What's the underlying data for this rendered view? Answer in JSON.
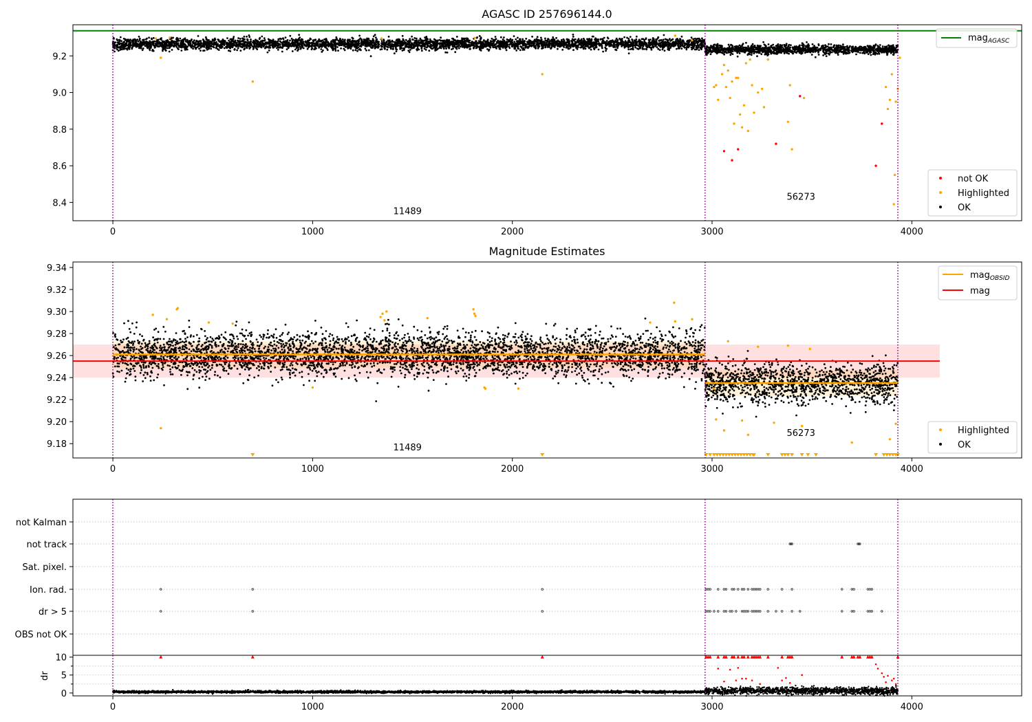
{
  "chart_data": [
    {
      "id": "top",
      "type": "scatter",
      "title": "AGASC ID 257696144.0",
      "xlim": [
        -200,
        4550
      ],
      "ylim": [
        8.3,
        9.37
      ],
      "xticks": [
        0,
        1000,
        2000,
        3000,
        4000
      ],
      "yticks": [
        8.4,
        8.6,
        8.8,
        9.0,
        9.2
      ],
      "vlines": [
        0,
        2965,
        3930
      ],
      "hline": {
        "label": "mag",
        "sub": "AGASC",
        "y": 9.337,
        "x": [
          -200,
          4550
        ],
        "color": "#008000"
      },
      "annotations": [
        {
          "text": "11489",
          "x": 1475,
          "y": 8.335
        },
        {
          "text": "56273",
          "x": 3445,
          "y": 8.415
        }
      ],
      "series": [
        {
          "name": "not OK",
          "color": "#ff0000",
          "points": [
            [
              3060,
              8.68
            ],
            [
              3100,
              8.63
            ],
            [
              3130,
              8.69
            ],
            [
              3320,
              8.72
            ],
            [
              3440,
              8.98
            ],
            [
              3820,
              8.6
            ],
            [
              3850,
              8.83
            ]
          ]
        },
        {
          "name": "Highlighted",
          "color": "#ffa500",
          "points": [
            [
              240,
              9.19
            ],
            [
              700,
              9.06
            ],
            [
              2150,
              9.1
            ],
            [
              3010,
              9.03
            ],
            [
              3020,
              9.04
            ],
            [
              3030,
              8.96
            ],
            [
              3050,
              9.1
            ],
            [
              3060,
              9.15
            ],
            [
              3070,
              9.03
            ],
            [
              3080,
              9.12
            ],
            [
              3090,
              8.97
            ],
            [
              3100,
              9.06
            ],
            [
              3110,
              8.83
            ],
            [
              3120,
              9.08
            ],
            [
              3130,
              9.08
            ],
            [
              3140,
              8.88
            ],
            [
              3150,
              8.81
            ],
            [
              3160,
              8.93
            ],
            [
              3170,
              9.16
            ],
            [
              3180,
              8.79
            ],
            [
              3190,
              9.18
            ],
            [
              3200,
              9.04
            ],
            [
              3210,
              8.89
            ],
            [
              3230,
              9.0
            ],
            [
              3250,
              9.02
            ],
            [
              3260,
              8.92
            ],
            [
              3280,
              9.18
            ],
            [
              3380,
              8.84
            ],
            [
              3390,
              9.04
            ],
            [
              3400,
              8.69
            ],
            [
              3460,
              8.97
            ],
            [
              3870,
              9.03
            ],
            [
              3880,
              8.91
            ],
            [
              3890,
              8.96
            ],
            [
              3900,
              9.1
            ],
            [
              3910,
              8.39
            ],
            [
              3915,
              8.55
            ],
            [
              3920,
              8.95
            ],
            [
              3930,
              9.02
            ],
            [
              3940,
              9.19
            ]
          ]
        },
        {
          "name": "OK",
          "color": "#000000",
          "bands": [
            {
              "x0": 0,
              "x1": 2965,
              "center": 9.265,
              "spread": 0.015
            },
            {
              "x0": 2965,
              "x1": 3930,
              "center": 9.235,
              "spread": 0.012
            }
          ]
        }
      ]
    },
    {
      "id": "mid",
      "type": "scatter",
      "title": "Magnitude Estimates",
      "xlim": [
        -200,
        4550
      ],
      "ylim": [
        9.167,
        9.345
      ],
      "xticks": [
        0,
        1000,
        2000,
        3000,
        4000
      ],
      "yticks": [
        9.18,
        9.2,
        9.22,
        9.24,
        9.26,
        9.28,
        9.3,
        9.32,
        9.34
      ],
      "vlines": [
        0,
        2965,
        3930
      ],
      "mag": {
        "label": "mag",
        "y": 9.255,
        "err": 0.015,
        "x": [
          -200,
          4140
        ],
        "color": "#ff0000"
      },
      "mag_obsid": {
        "label": "mag",
        "sub": "OBSID",
        "color": "#ffa500",
        "segments": [
          {
            "x0": 0,
            "x1": 2965,
            "y": 9.261,
            "err": 0.012
          },
          {
            "x0": 2965,
            "x1": 3930,
            "y": 9.235,
            "err": 0.012
          }
        ]
      },
      "annotations": [
        {
          "text": "11489",
          "x": 1475,
          "y": 9.174
        },
        {
          "text": "56273",
          "x": 3445,
          "y": 9.187
        }
      ],
      "series": [
        {
          "name": "Highlighted",
          "color": "#ffa500",
          "points": [
            [
              200,
              9.297
            ],
            [
              240,
              9.194
            ],
            [
              270,
              9.293
            ],
            [
              320,
              9.302
            ],
            [
              325,
              9.303
            ],
            [
              480,
              9.29
            ],
            [
              600,
              9.289
            ],
            [
              1000,
              9.231
            ],
            [
              1340,
              9.295
            ],
            [
              1350,
              9.298
            ],
            [
              1360,
              9.292
            ],
            [
              1370,
              9.3
            ],
            [
              1575,
              9.294
            ],
            [
              1805,
              9.302
            ],
            [
              1810,
              9.298
            ],
            [
              1815,
              9.296
            ],
            [
              1860,
              9.231
            ],
            [
              1865,
              9.23
            ],
            [
              2030,
              9.23
            ],
            [
              2690,
              9.29
            ],
            [
              2810,
              9.308
            ],
            [
              2815,
              9.291
            ],
            [
              2900,
              9.293
            ],
            [
              3010,
              9.23
            ],
            [
              3020,
              9.202
            ],
            [
              3060,
              9.192
            ],
            [
              3080,
              9.273
            ],
            [
              3150,
              9.201
            ],
            [
              3180,
              9.188
            ],
            [
              3230,
              9.268
            ],
            [
              3310,
              9.199
            ],
            [
              3380,
              9.269
            ],
            [
              3450,
              9.196
            ],
            [
              3490,
              9.266
            ],
            [
              3700,
              9.181
            ],
            [
              3890,
              9.184
            ],
            [
              3920,
              9.198
            ]
          ]
        },
        {
          "name": "Highlighted-clipped",
          "legend": false,
          "color": "#ffa500",
          "xs": [
            700,
            2150,
            2970,
            2990,
            3010,
            3025,
            3040,
            3055,
            3070,
            3085,
            3100,
            3115,
            3130,
            3145,
            3160,
            3175,
            3190,
            3205,
            3210,
            3280,
            3350,
            3365,
            3380,
            3400,
            3450,
            3480,
            3520,
            3820,
            3860,
            3875,
            3890,
            3905,
            3920,
            3930
          ]
        },
        {
          "name": "OK",
          "color": "#000000",
          "bands": [
            {
              "x0": 0,
              "x1": 2965,
              "center": 9.261,
              "spread": 0.01
            },
            {
              "x0": 2965,
              "x1": 3930,
              "center": 9.235,
              "spread": 0.009
            }
          ]
        }
      ]
    },
    {
      "id": "flags",
      "type": "scatter",
      "xlim": [
        -200,
        4550
      ],
      "xticks": [
        0,
        1000,
        2000,
        3000,
        4000
      ],
      "vlines": [
        0,
        2965,
        3930
      ],
      "categories": [
        "OBS not OK",
        "dr > 5",
        "Ion. rad.",
        "Sat. pixel.",
        "not track",
        "not Kalman"
      ],
      "flag_points": {
        "not track": [
          3390,
          3395,
          3400,
          3730,
          3735,
          3740
        ],
        "Ion. rad.": [
          240,
          700,
          2150,
          2970,
          2980,
          2990,
          3030,
          3060,
          3070,
          3100,
          3110,
          3130,
          3150,
          3160,
          3180,
          3200,
          3210,
          3220,
          3230,
          3240,
          3280,
          3350,
          3400,
          3650,
          3700,
          3710,
          3780,
          3790,
          3800
        ],
        "dr > 5": [
          240,
          700,
          2150,
          2970,
          2980,
          2990,
          3010,
          3030,
          3060,
          3070,
          3090,
          3100,
          3120,
          3150,
          3160,
          3170,
          3180,
          3200,
          3210,
          3220,
          3230,
          3240,
          3280,
          3320,
          3350,
          3400,
          3440,
          3650,
          3700,
          3710,
          3780,
          3790,
          3800,
          3850
        ]
      }
    },
    {
      "id": "dr",
      "type": "scatter",
      "ylabel": "dr",
      "xlim": [
        -200,
        4550
      ],
      "ylim": [
        -0.8,
        10.5
      ],
      "xticks": [
        0,
        1000,
        2000,
        3000,
        4000
      ],
      "yticks": [
        0,
        5,
        10
      ],
      "vlines": [
        0,
        2965,
        3930
      ],
      "series": [
        {
          "name": "dr clipped",
          "color": "#ff0000",
          "xs": [
            240,
            700,
            2150,
            2970,
            2980,
            2990,
            3030,
            3060,
            3070,
            3100,
            3110,
            3130,
            3150,
            3160,
            3180,
            3200,
            3210,
            3220,
            3230,
            3240,
            3280,
            3350,
            3380,
            3390,
            3400,
            3650,
            3700,
            3710,
            3730,
            3740,
            3780,
            3790,
            3800,
            3930
          ]
        },
        {
          "name": "dr high",
          "color": "#ff0000",
          "points": [
            [
              3030,
              6.8
            ],
            [
              3060,
              3.2
            ],
            [
              3090,
              6.5
            ],
            [
              3120,
              3.5
            ],
            [
              3130,
              7.0
            ],
            [
              3150,
              4.0
            ],
            [
              3170,
              4.0
            ],
            [
              3200,
              3.5
            ],
            [
              3240,
              2.5
            ],
            [
              3330,
              7.0
            ],
            [
              3350,
              3.5
            ],
            [
              3370,
              4.2
            ],
            [
              3390,
              2.8
            ],
            [
              3450,
              5.0
            ],
            [
              3820,
              8.0
            ],
            [
              3830,
              6.8
            ],
            [
              3850,
              5.5
            ],
            [
              3860,
              4.5
            ],
            [
              3870,
              3.0
            ],
            [
              3880,
              4.8
            ],
            [
              3900,
              3.5
            ],
            [
              3910,
              4.0
            ],
            [
              3920,
              2.5
            ]
          ]
        },
        {
          "name": "dr ok",
          "color": "#000000",
          "bands": [
            {
              "x0": 0,
              "x1": 2965,
              "center": 0.3,
              "spread": 0.15
            },
            {
              "x0": 2965,
              "x1": 3930,
              "center": 0.6,
              "spread": 0.5
            }
          ]
        }
      ]
    }
  ],
  "legend_top": [
    {
      "label": "not OK",
      "sub": "",
      "color": "#ff0000",
      "kind": "dot"
    },
    {
      "label": "Highlighted",
      "sub": "",
      "color": "#ffa500",
      "kind": "dot"
    },
    {
      "label": "OK",
      "sub": "",
      "color": "#000000",
      "kind": "dot"
    }
  ],
  "legend_top_line": {
    "label": "mag",
    "sub": "AGASC",
    "color": "#008000"
  },
  "legend_mid_lines": [
    {
      "label": "mag",
      "sub": "OBSID",
      "color": "#ffa500"
    },
    {
      "label": "mag",
      "sub": "",
      "color": "#ff0000"
    }
  ],
  "legend_mid_dots": [
    {
      "label": "Highlighted",
      "color": "#ffa500"
    },
    {
      "label": "OK",
      "color": "#000000"
    }
  ],
  "colors": {
    "vline": "#800080",
    "gridline": "#b0b0b0",
    "magband": "#ff0000",
    "obsidband": "#ffa500"
  }
}
